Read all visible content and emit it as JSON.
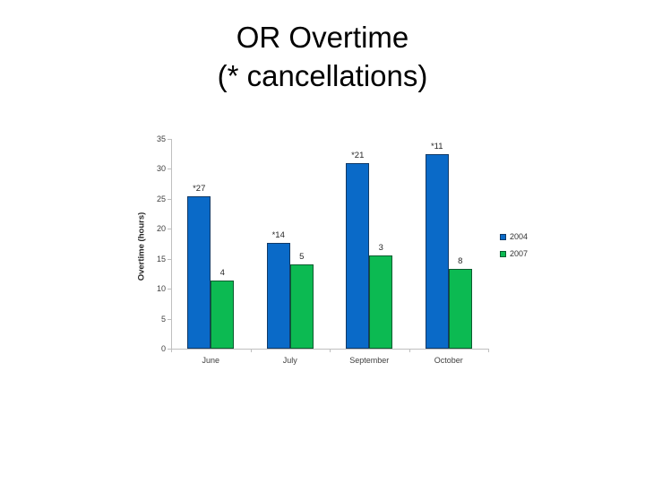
{
  "slide": {
    "title_line1": "OR Overtime",
    "title_line2": "(* cancellations)"
  },
  "chart_data": {
    "type": "bar",
    "title": "",
    "xlabel": "",
    "ylabel": "Overtime (hours)",
    "ylim": [
      0,
      35
    ],
    "yticks": [
      0,
      5,
      10,
      15,
      20,
      25,
      30,
      35
    ],
    "grid": false,
    "legend_position": "right",
    "categories": [
      "June",
      "July",
      "September",
      "October"
    ],
    "series": [
      {
        "name": "2004",
        "color": "#0A6AC8",
        "border_color": "#123a66",
        "values": [
          25.5,
          17.7,
          31,
          32.5
        ],
        "labels": [
          "*27",
          "*14",
          "*21",
          "*11"
        ]
      },
      {
        "name": "2007",
        "color": "#0CBA52",
        "border_color": "#0c5c30",
        "values": [
          11.4,
          14,
          15.5,
          13.3
        ],
        "labels": [
          "4",
          "5",
          "3",
          "8"
        ]
      }
    ]
  }
}
